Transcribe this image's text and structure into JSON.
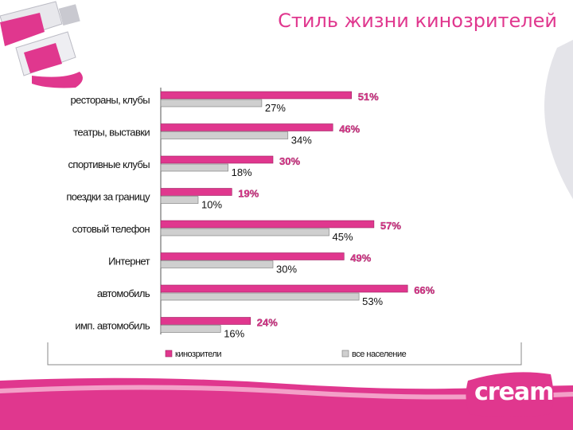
{
  "title": "Стиль жизни кинозрителей",
  "logo": {
    "text": "cream"
  },
  "colors": {
    "pink": "#e0378e",
    "gray": "#cfcfcf",
    "accent": "#e0378e"
  },
  "chart_data": {
    "type": "bar",
    "orientation": "horizontal",
    "title": "",
    "categories": [
      "рестораны, клубы",
      "театры, выставки",
      "спортивные клубы",
      "поездки за границу",
      "сотовый телефон",
      "Интернет",
      "автомобиль",
      "имп. автомобиль"
    ],
    "series": [
      {
        "name": "кинозрители",
        "values": [
          51,
          46,
          30,
          19,
          57,
          49,
          66,
          24
        ],
        "labels": [
          "51%",
          "46%",
          "30%",
          "19%",
          "57%",
          "49%",
          "66%",
          "24%"
        ]
      },
      {
        "name": "все население",
        "values": [
          27,
          34,
          18,
          10,
          45,
          30,
          53,
          16
        ],
        "labels": [
          "27%",
          "34%",
          "18%",
          "10%",
          "45%",
          "30%",
          "53%",
          "16%"
        ]
      }
    ],
    "xlim": [
      0,
      70
    ],
    "legend_position": "bottom",
    "grid": false
  }
}
